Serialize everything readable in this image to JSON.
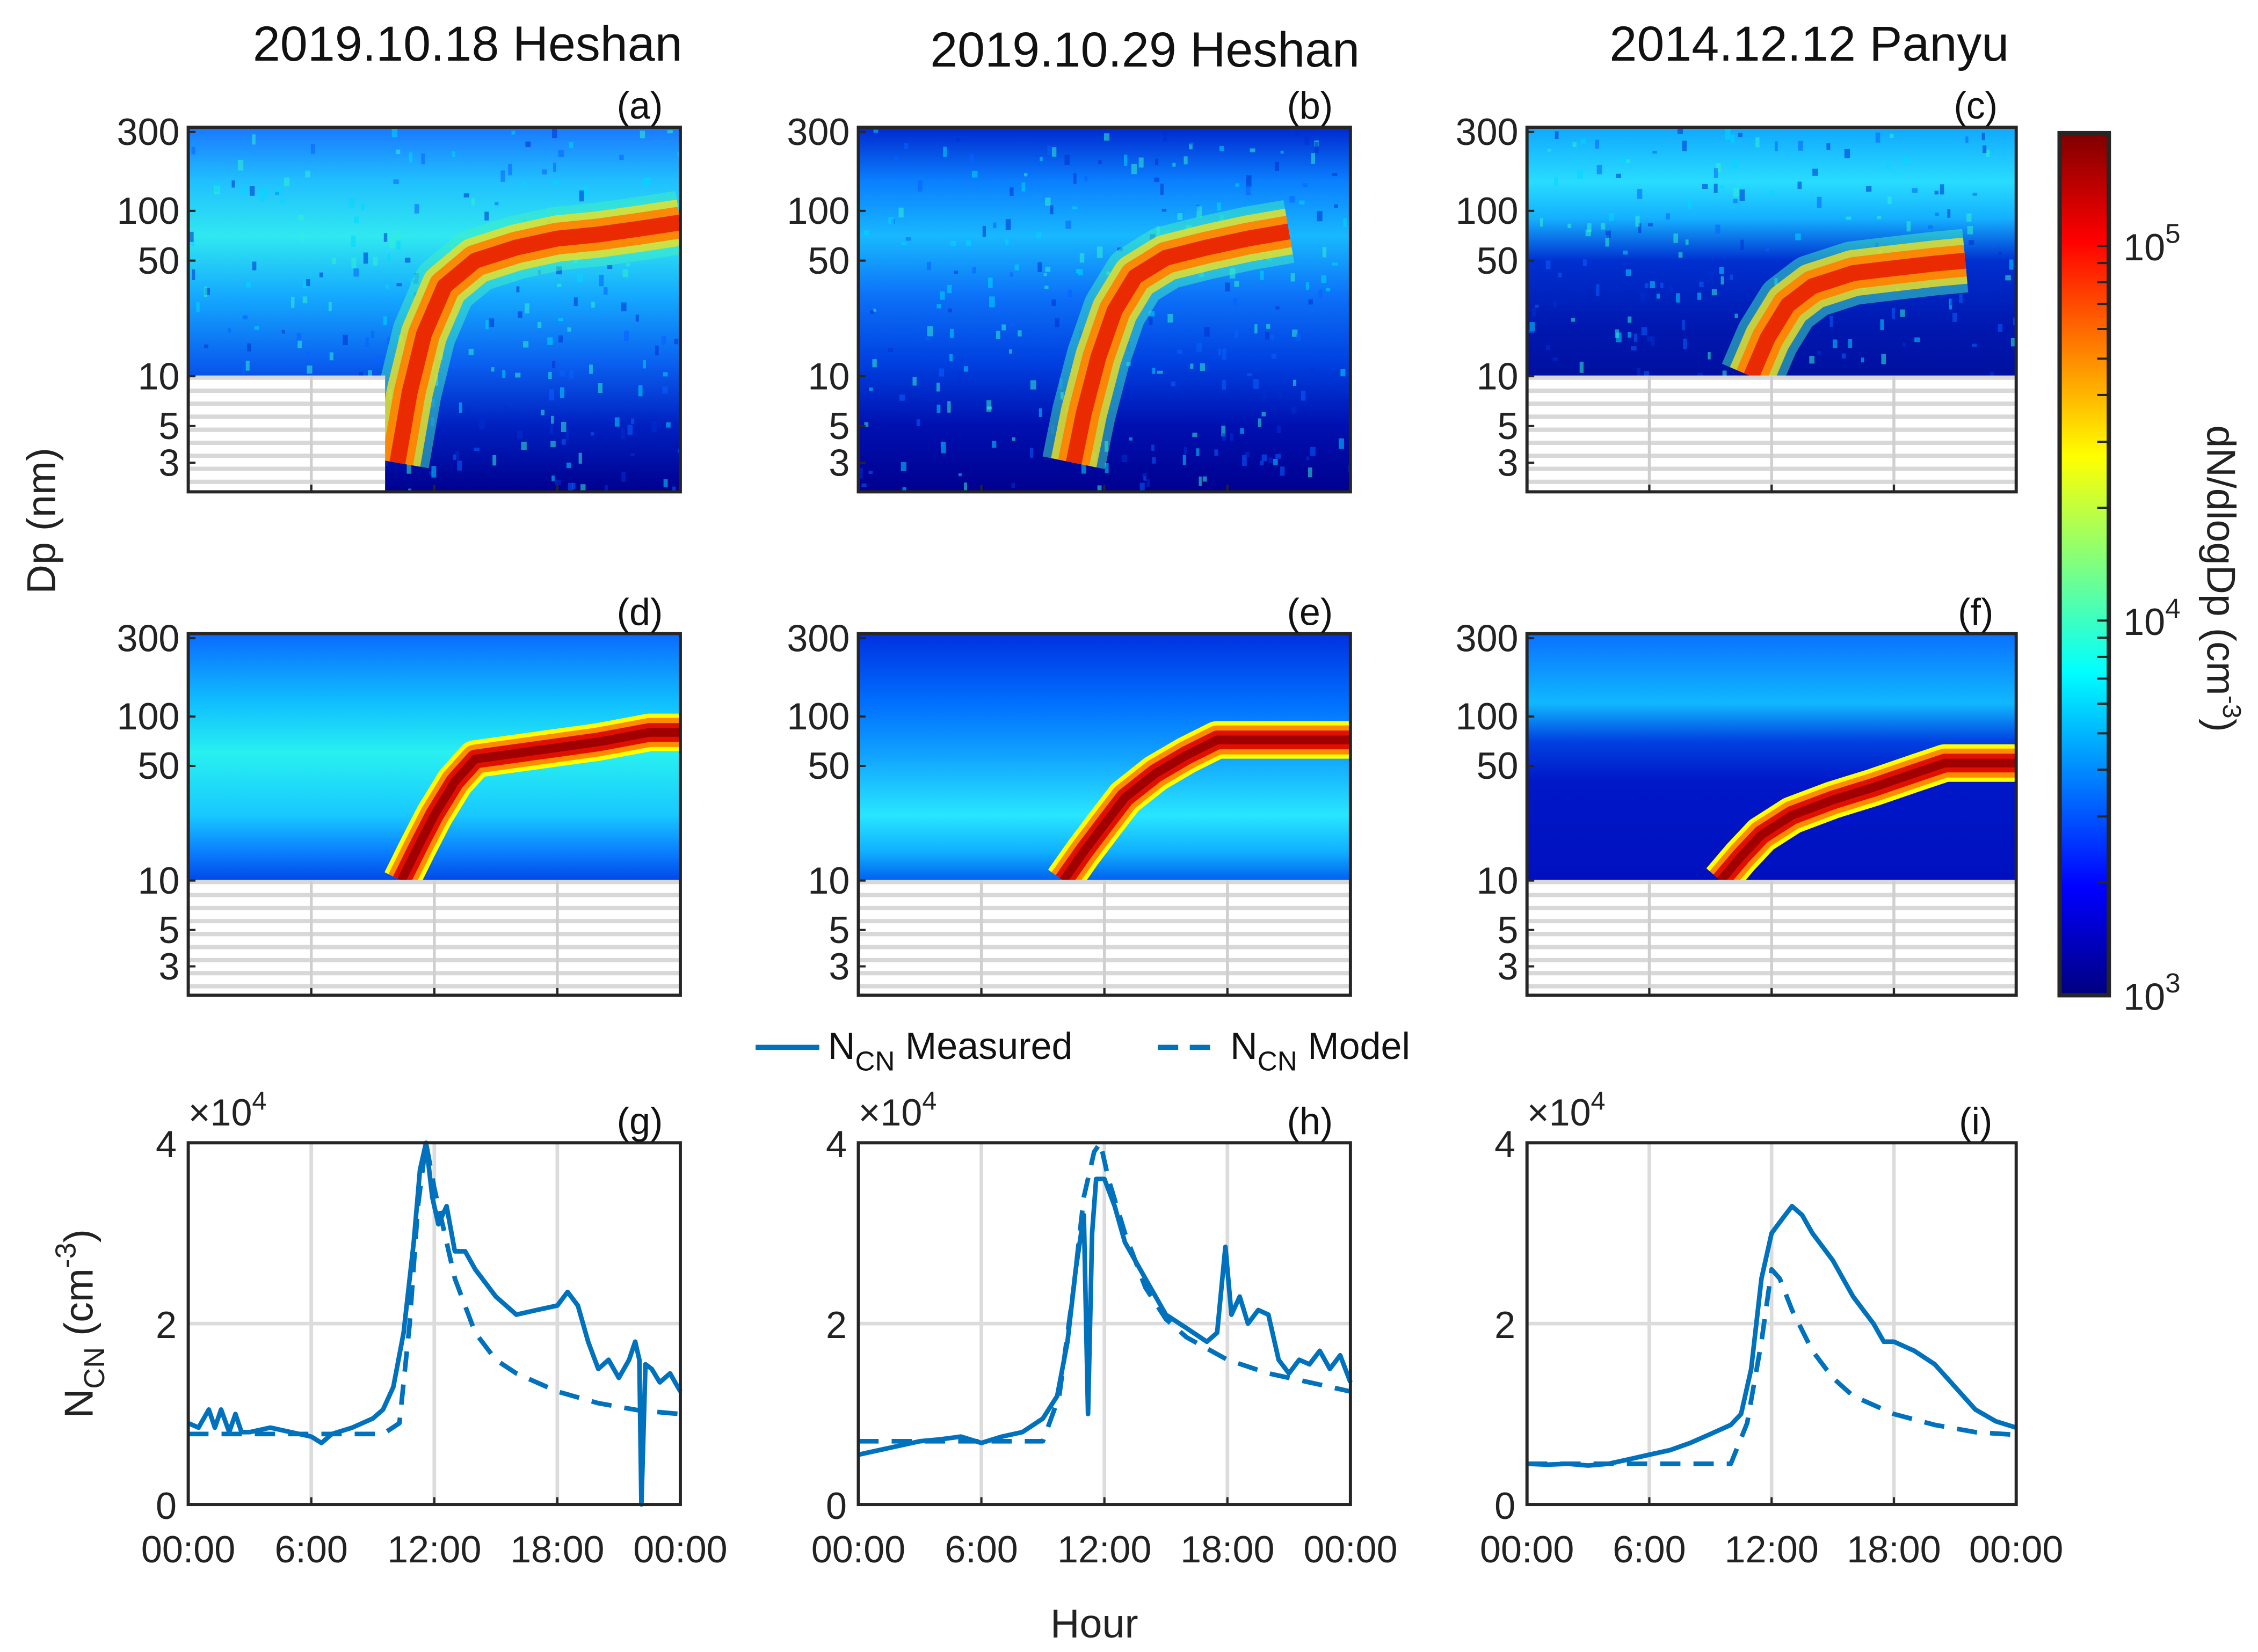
{
  "titles": [
    "2019.10.18 Heshan",
    "2019.10.29 Heshan",
    "2014.12.12 Panyu"
  ],
  "panel_labels": [
    "(a)",
    "(b)",
    "(c)",
    "(d)",
    "(e)",
    "(f)",
    "(g)",
    "(h)",
    "(i)"
  ],
  "y_label_dp": "Dp (nm)",
  "y_label_ncn": {
    "main": "N",
    "sub": "CN",
    "unit": " (cm",
    "exp": "-3",
    "close": ")"
  },
  "x_label": "Hour",
  "x_tick_labels": [
    "00:00",
    "6:00",
    "12:00",
    "18:00",
    "00:00"
  ],
  "dp_tick_labels": [
    "3",
    "5",
    "10",
    "50",
    "100",
    "300"
  ],
  "ncn_tick_labels": [
    "0",
    "2",
    "4"
  ],
  "ncn_multiplier": {
    "base": "×10",
    "exp": "4"
  },
  "legend": {
    "measured": {
      "main": "N",
      "sub": "CN",
      "rest": " Measured"
    },
    "model": {
      "main": "N",
      "sub": "CN",
      "rest": " Model"
    }
  },
  "colorbar": {
    "label": "dN/dlogDp (cm",
    "label_exp": "-3",
    "label_close": ")",
    "ticks": [
      {
        "base": "10",
        "exp": "3",
        "value": 1000
      },
      {
        "base": "10",
        "exp": "4",
        "value": 10000
      },
      {
        "base": "10",
        "exp": "5",
        "value": 100000
      }
    ],
    "range": [
      1000,
      200000
    ],
    "colormap": "jet"
  },
  "chart_data": [
    {
      "type": "heatmap",
      "panel": "a",
      "title": "2019.10.18 Heshan",
      "kind": "measured",
      "xlim": [
        0,
        24
      ],
      "ylim": [
        2,
        320
      ],
      "yscale": "log",
      "growth_track": {
        "hour": [
          10.2,
          10.8,
          11.5,
          12.5,
          14,
          16,
          18,
          20,
          22,
          24
        ],
        "dp": [
          3,
          8,
          18,
          35,
          50,
          60,
          68,
          72,
          78,
          85
        ]
      }
    },
    {
      "type": "heatmap",
      "panel": "b",
      "title": "2019.10.29 Heshan",
      "kind": "measured",
      "xlim": [
        0,
        24
      ],
      "ylim": [
        2,
        320
      ],
      "yscale": "log",
      "growth_track": {
        "hour": [
          10.5,
          11,
          11.7,
          12.5,
          13.5,
          15,
          17,
          19,
          21
        ],
        "dp": [
          3,
          6,
          13,
          25,
          40,
          52,
          60,
          68,
          75
        ]
      }
    },
    {
      "type": "heatmap",
      "panel": "c",
      "title": "2014.12.12 Panyu",
      "kind": "measured",
      "xlim": [
        0,
        24
      ],
      "ylim": [
        2,
        320
      ],
      "yscale": "log",
      "growth_track": {
        "hour": [
          11,
          11.8,
          12.8,
          14,
          16,
          18,
          20,
          21.5
        ],
        "dp": [
          10,
          17,
          27,
          35,
          42,
          45,
          48,
          50
        ]
      }
    },
    {
      "type": "heatmap",
      "panel": "d",
      "kind": "model",
      "xlim": [
        0,
        24
      ],
      "ylim": [
        2,
        320
      ],
      "yscale": "log",
      "growth_track": {
        "hour": [
          10.4,
          11.2,
          12,
          13,
          14,
          17,
          20,
          22.5,
          24
        ],
        "dp": [
          10,
          16,
          25,
          40,
          55,
          62,
          70,
          80,
          80
        ]
      }
    },
    {
      "type": "heatmap",
      "panel": "e",
      "kind": "model",
      "xlim": [
        0,
        24
      ],
      "ylim": [
        2,
        320
      ],
      "yscale": "log",
      "growth_track": {
        "hour": [
          10,
          11,
          12,
          13,
          14.5,
          16,
          17.5,
          24
        ],
        "dp": [
          10,
          15,
          22,
          32,
          45,
          58,
          72,
          72
        ]
      }
    },
    {
      "type": "heatmap",
      "panel": "f",
      "kind": "model",
      "xlim": [
        0,
        24
      ],
      "ylim": [
        2,
        320
      ],
      "yscale": "log",
      "growth_track": {
        "hour": [
          9.5,
          10.5,
          11.5,
          13,
          15,
          17,
          19,
          20.5,
          24
        ],
        "dp": [
          10,
          14,
          19,
          25,
          31,
          37,
          45,
          52,
          52
        ]
      }
    },
    {
      "type": "line",
      "panel": "g",
      "xlabel": "Hour",
      "ylabel": "N_CN (cm^-3)",
      "xlim": [
        0,
        24
      ],
      "ylim": [
        0,
        40000
      ],
      "y_multiplier": 10000,
      "grid": true,
      "series": [
        {
          "name": "N_CN Measured",
          "style": "solid",
          "x": [
            0,
            0.5,
            1,
            1.3,
            1.6,
            2,
            2.3,
            2.6,
            3,
            4,
            5,
            6,
            6.5,
            7,
            8,
            9,
            9.5,
            10,
            10.5,
            11,
            11.3,
            11.6,
            11.9,
            12.2,
            12.6,
            13,
            13.5,
            14,
            15,
            16,
            17,
            18,
            18.5,
            19,
            19.5,
            20,
            20.5,
            21,
            21.5,
            21.8,
            22,
            22.1,
            22.3,
            22.6,
            23,
            23.5,
            24
          ],
          "y": [
            0.9,
            0.85,
            1.05,
            0.85,
            1.05,
            0.8,
            1.0,
            0.8,
            0.8,
            0.85,
            0.8,
            0.75,
            0.68,
            0.78,
            0.85,
            0.95,
            1.05,
            1.3,
            1.9,
            2.9,
            3.7,
            4.0,
            3.4,
            3.1,
            3.3,
            2.8,
            2.8,
            2.6,
            2.3,
            2.1,
            2.15,
            2.2,
            2.35,
            2.2,
            1.8,
            1.5,
            1.6,
            1.4,
            1.6,
            1.8,
            1.6,
            0,
            1.55,
            1.5,
            1.35,
            1.45,
            1.25
          ]
        },
        {
          "name": "N_CN Model",
          "style": "dashed",
          "x": [
            0,
            2,
            4,
            6,
            8,
            9.5,
            10.3,
            10.8,
            11.2,
            11.6,
            12,
            12.5,
            13,
            14,
            15,
            16,
            18,
            20,
            22,
            24
          ],
          "y": [
            0.78,
            0.78,
            0.78,
            0.78,
            0.78,
            0.78,
            0.9,
            2.0,
            3.3,
            4.0,
            3.5,
            3.0,
            2.5,
            1.9,
            1.6,
            1.45,
            1.25,
            1.12,
            1.04,
            1.0
          ]
        }
      ]
    },
    {
      "type": "line",
      "panel": "h",
      "xlabel": "Hour",
      "xlim": [
        0,
        24
      ],
      "ylim": [
        0,
        40000
      ],
      "y_multiplier": 10000,
      "grid": true,
      "series": [
        {
          "name": "N_CN Measured",
          "style": "solid",
          "x": [
            0,
            1,
            2,
            3,
            4,
            5,
            6,
            7,
            8,
            9,
            9.7,
            10.2,
            10.6,
            11,
            11.2,
            11.4,
            11.6,
            12,
            12.5,
            13,
            14,
            15,
            16,
            17,
            17.5,
            17.9,
            18.2,
            18.6,
            19,
            19.5,
            20,
            20.5,
            21,
            21.5,
            22,
            22.5,
            23,
            23.5,
            24
          ],
          "y": [
            0.55,
            0.6,
            0.65,
            0.7,
            0.72,
            0.75,
            0.68,
            0.75,
            0.8,
            0.95,
            1.2,
            1.8,
            2.6,
            3.2,
            1.0,
            3.0,
            3.6,
            3.6,
            3.3,
            2.9,
            2.5,
            2.1,
            1.95,
            1.8,
            1.9,
            2.85,
            2.1,
            2.3,
            2.0,
            2.15,
            2.1,
            1.6,
            1.45,
            1.6,
            1.55,
            1.7,
            1.5,
            1.65,
            1.35
          ]
        },
        {
          "name": "N_CN Model",
          "style": "dashed",
          "x": [
            0,
            2,
            4,
            6,
            8,
            9,
            9.8,
            10.5,
            11,
            11.5,
            11.8,
            12.2,
            13,
            14,
            15,
            16,
            18,
            20,
            22,
            24
          ],
          "y": [
            0.7,
            0.7,
            0.7,
            0.7,
            0.7,
            0.7,
            1.2,
            2.4,
            3.4,
            3.9,
            4.0,
            3.6,
            3.0,
            2.4,
            2.05,
            1.85,
            1.6,
            1.45,
            1.35,
            1.25
          ]
        }
      ]
    },
    {
      "type": "line",
      "panel": "i",
      "xlabel": "Hour",
      "xlim": [
        0,
        24
      ],
      "ylim": [
        0,
        40000
      ],
      "y_multiplier": 10000,
      "grid": true,
      "series": [
        {
          "name": "N_CN Measured",
          "style": "solid",
          "x": [
            0,
            1,
            2,
            3,
            4,
            5,
            6,
            7,
            8,
            9,
            10,
            10.5,
            11,
            11.5,
            12,
            12.5,
            13,
            13.5,
            14,
            15,
            16,
            17,
            17.5,
            18,
            19,
            20,
            21,
            22,
            23,
            24
          ],
          "y": [
            0.45,
            0.44,
            0.45,
            0.43,
            0.45,
            0.5,
            0.55,
            0.6,
            0.68,
            0.78,
            0.88,
            1.0,
            1.5,
            2.5,
            3.0,
            3.15,
            3.3,
            3.2,
            3.0,
            2.7,
            2.3,
            2.0,
            1.8,
            1.8,
            1.7,
            1.55,
            1.3,
            1.05,
            0.92,
            0.85
          ]
        },
        {
          "name": "N_CN Model",
          "style": "dashed",
          "x": [
            0,
            2,
            4,
            6,
            8,
            10,
            10.8,
            11.5,
            12,
            12.4,
            13,
            14,
            15,
            16,
            18,
            20,
            22,
            24
          ],
          "y": [
            0.45,
            0.45,
            0.45,
            0.45,
            0.45,
            0.45,
            0.9,
            1.8,
            2.6,
            2.5,
            2.15,
            1.7,
            1.4,
            1.2,
            1.0,
            0.88,
            0.8,
            0.77
          ]
        }
      ]
    }
  ]
}
